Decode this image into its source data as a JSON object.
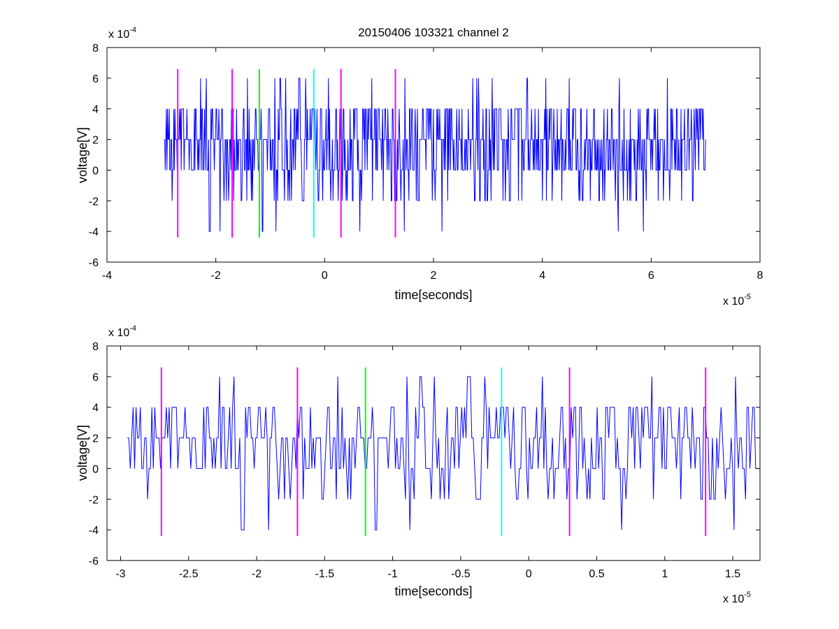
{
  "figure": {
    "title": "20150406 103321 channel 2"
  },
  "colors": {
    "signal": "#0000ff",
    "magenta_marker": "#ff00ff",
    "green_marker": "#00ff00",
    "cyan_marker": "#00ffff",
    "axes": "#000000",
    "background": "#ffffff"
  },
  "chart_data": [
    {
      "type": "line",
      "title": "20150406 103321 channel 2",
      "xlabel": "time[seconds]",
      "ylabel": "voltage[V]",
      "x_exponent_label": "x 10",
      "x_exponent_power": "-5",
      "y_exponent_label": "x 10",
      "y_exponent_power": "-4",
      "xlim": [
        -4,
        8
      ],
      "ylim": [
        -6,
        8
      ],
      "x_ticks": [
        "-4",
        "-2",
        "0",
        "2",
        "4",
        "6",
        "8"
      ],
      "y_ticks": [
        "-6",
        "-4",
        "-2",
        "0",
        "2",
        "4",
        "6",
        "8"
      ],
      "grid": false,
      "series": [
        {
          "color": "#0000ff",
          "x_range": [
            -2.95,
            7.0
          ],
          "step_count": 950,
          "levels": [
            -4,
            -2,
            0,
            2,
            4,
            6
          ],
          "baseline": 2,
          "seed": 17
        }
      ],
      "markers": [
        {
          "x": -2.7,
          "y_range": [
            -4.4,
            6.6
          ],
          "color": "#ff00ff"
        },
        {
          "x": -1.7,
          "y_range": [
            -4.4,
            6.6
          ],
          "color": "#ff00ff"
        },
        {
          "x": -1.2,
          "y_range": [
            -4.4,
            6.6
          ],
          "color": "#00ff00"
        },
        {
          "x": -0.2,
          "y_range": [
            -4.4,
            6.6
          ],
          "color": "#00ffff"
        },
        {
          "x": 0.3,
          "y_range": [
            -4.4,
            6.6
          ],
          "color": "#ff00ff"
        },
        {
          "x": 1.3,
          "y_range": [
            -4.4,
            6.6
          ],
          "color": "#ff00ff"
        }
      ]
    },
    {
      "type": "line",
      "title": "",
      "xlabel": "time[seconds]",
      "ylabel": "voltage[V]",
      "x_exponent_label": "x 10",
      "x_exponent_power": "-5",
      "y_exponent_label": "x 10",
      "y_exponent_power": "-4",
      "xlim": [
        -3.1,
        1.7
      ],
      "ylim": [
        -6,
        8
      ],
      "x_tick_values": [
        -3,
        -2.5,
        -2,
        -1.5,
        -1,
        -0.5,
        0,
        0.5,
        1,
        1.5
      ],
      "x_ticks": [
        "-3",
        "-2.5",
        "-2",
        "-1.5",
        "-1",
        "-0.5",
        "0",
        "0.5",
        "1",
        "1.5"
      ],
      "y_ticks": [
        "-6",
        "-4",
        "-2",
        "0",
        "2",
        "4",
        "6",
        "8"
      ],
      "grid": false,
      "series": [
        {
          "color": "#0000ff",
          "x_range": [
            -2.95,
            1.7
          ],
          "step_count": 440,
          "levels": [
            -4,
            -2,
            0,
            2,
            4,
            6
          ],
          "baseline": 2,
          "seed": 17
        }
      ],
      "markers": [
        {
          "x": -2.7,
          "y_range": [
            -4.4,
            6.6
          ],
          "color": "#ff00ff"
        },
        {
          "x": -1.7,
          "y_range": [
            -4.4,
            6.6
          ],
          "color": "#ff00ff"
        },
        {
          "x": -1.2,
          "y_range": [
            -4.4,
            6.6
          ],
          "color": "#00ff00"
        },
        {
          "x": -0.2,
          "y_range": [
            -4.4,
            6.6
          ],
          "color": "#00ffff"
        },
        {
          "x": 0.3,
          "y_range": [
            -4.4,
            6.6
          ],
          "color": "#ff00ff"
        },
        {
          "x": 1.3,
          "y_range": [
            -4.4,
            6.6
          ],
          "color": "#ff00ff"
        }
      ]
    }
  ]
}
